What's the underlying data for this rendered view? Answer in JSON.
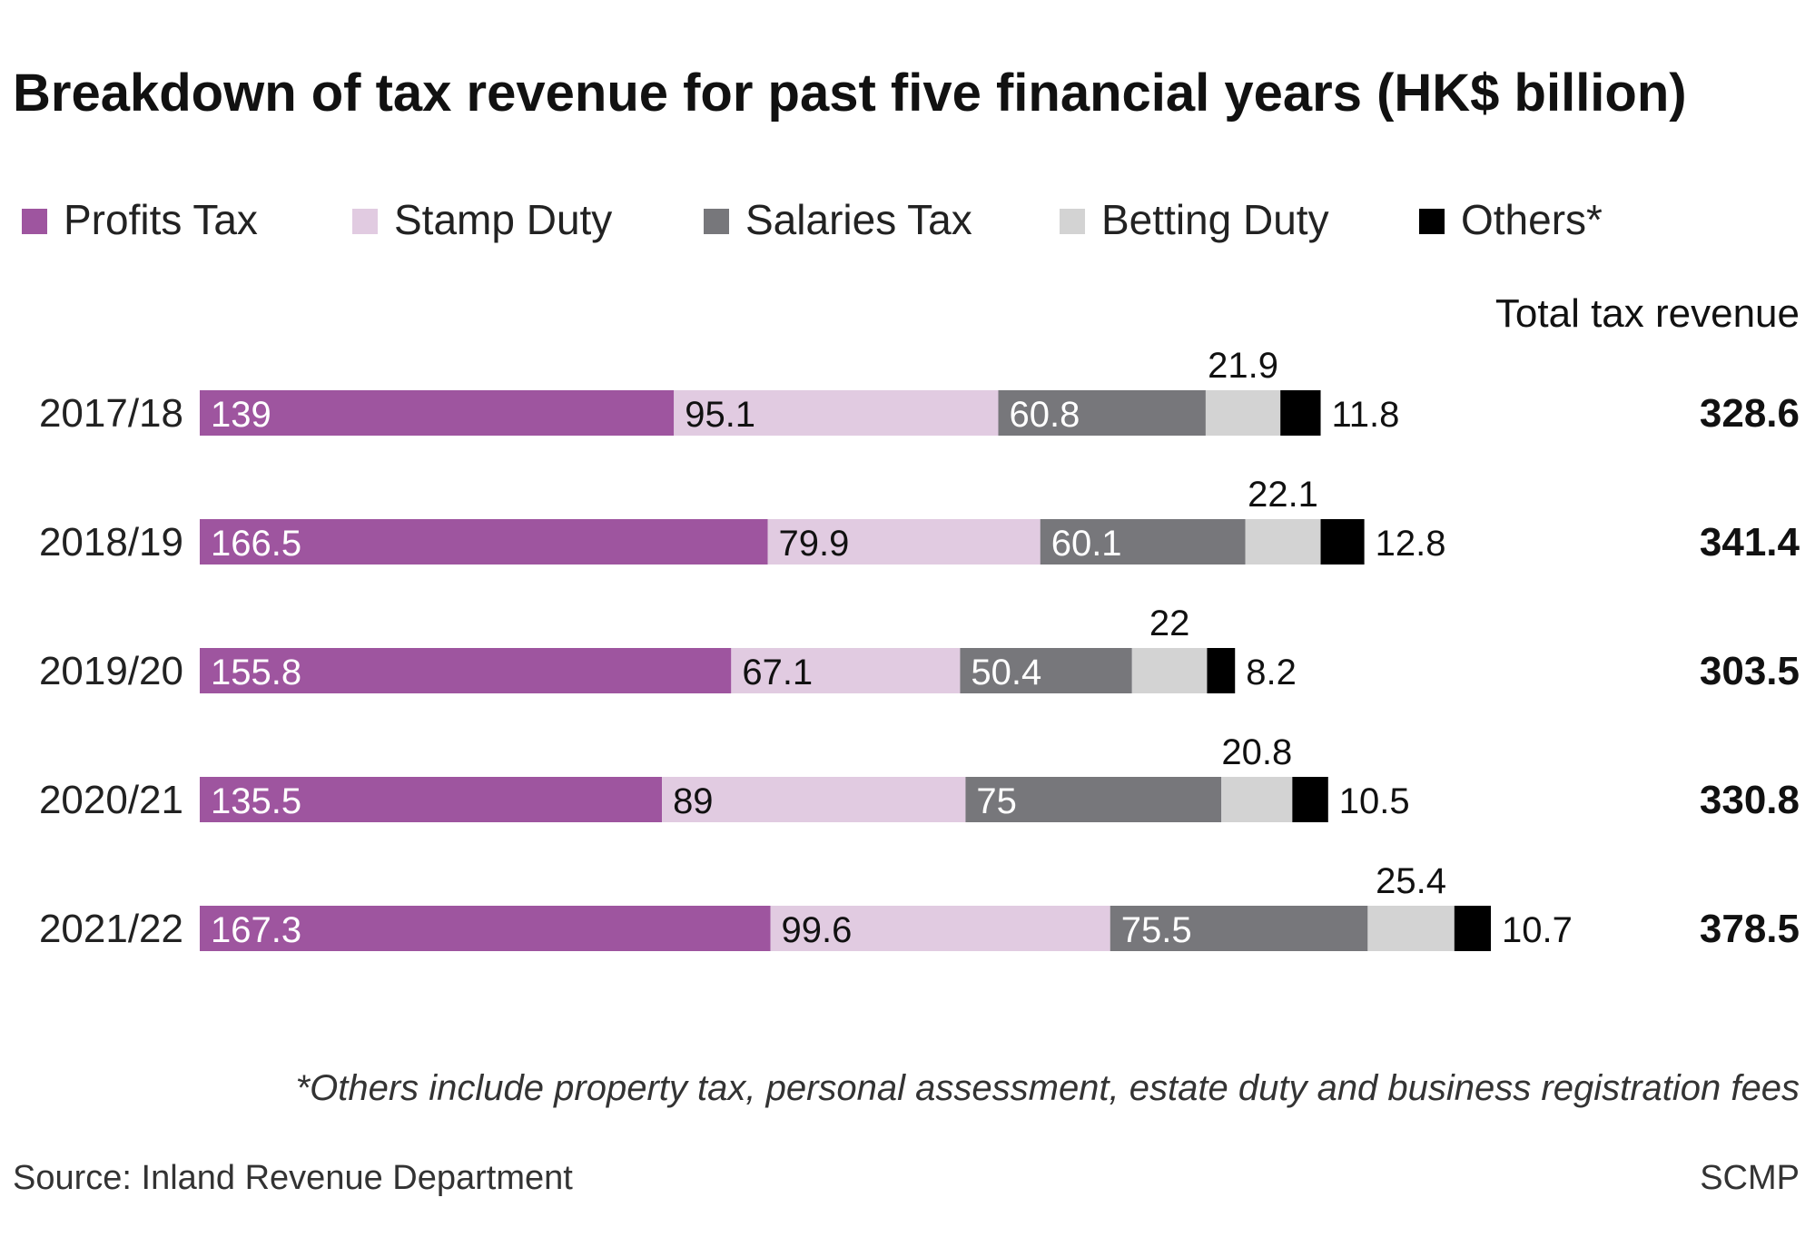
{
  "chart_data": {
    "type": "bar",
    "orientation": "horizontal",
    "stacked": true,
    "title": "Breakdown of tax revenue for past five financial years (HK$ billion)",
    "categories": [
      "2017/18",
      "2018/19",
      "2019/20",
      "2020/21",
      "2021/22"
    ],
    "series": [
      {
        "name": "Profits Tax",
        "color": "#9e559f",
        "label_color": "#ffffff",
        "values": [
          139,
          166.5,
          155.8,
          135.5,
          167.3
        ]
      },
      {
        "name": "Stamp Duty",
        "color": "#e1cbe1",
        "label_color": "#111111",
        "values": [
          95.1,
          79.9,
          67.1,
          89,
          99.6
        ]
      },
      {
        "name": "Salaries Tax",
        "color": "#77777b",
        "label_color": "#ffffff",
        "values": [
          60.8,
          60.1,
          50.4,
          75,
          75.5
        ]
      },
      {
        "name": "Betting Duty",
        "color": "#d3d3d3",
        "label_color": "#111111",
        "values": [
          21.9,
          22.1,
          22,
          20.8,
          25.4
        ]
      },
      {
        "name": "Others*",
        "color": "#000000",
        "label_color": "#111111",
        "values": [
          11.8,
          12.8,
          8.2,
          10.5,
          10.7
        ]
      }
    ],
    "value_labels": [
      [
        "139",
        "95.1",
        "60.8",
        "21.9",
        "11.8"
      ],
      [
        "166.5",
        "79.9",
        "60.1",
        "22.1",
        "12.8"
      ],
      [
        "155.8",
        "67.1",
        "50.4",
        "22",
        "8.2"
      ],
      [
        "135.5",
        "89",
        "75",
        "20.8",
        "10.5"
      ],
      [
        "167.3",
        "99.6",
        "75.5",
        "25.4",
        "10.7"
      ]
    ],
    "totals_header": "Total tax revenue",
    "totals": [
      "328.6",
      "341.4",
      "303.5",
      "330.8",
      "378.5"
    ],
    "xlim": [
      0,
      378.5
    ],
    "grid": false,
    "legend_position": "top"
  },
  "footnote": "*Others include property tax, personal assessment, estate duty and business registration fees",
  "source": "Source: Inland Revenue Department",
  "credit": "SCMP"
}
